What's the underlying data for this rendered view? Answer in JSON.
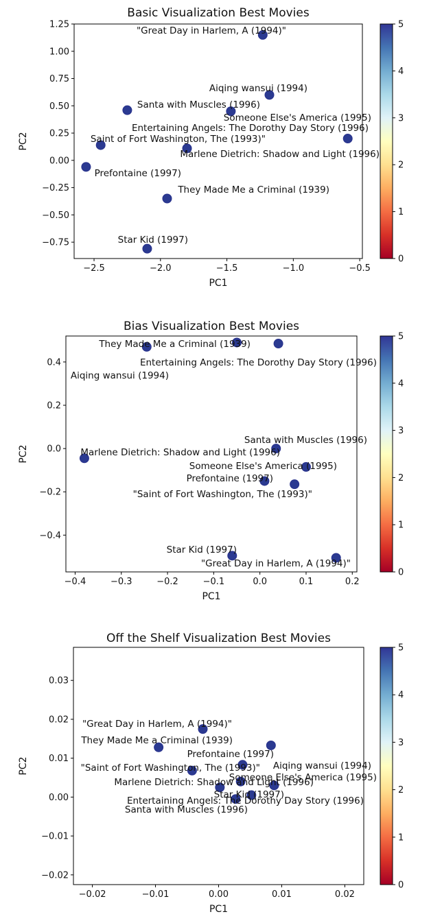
{
  "colorbar": {
    "ticks": [
      "0",
      "1",
      "2",
      "3",
      "4",
      "5"
    ],
    "min": 0,
    "max": 5,
    "colormap": "RdYlBu",
    "stops": [
      "#a50026",
      "#d73027",
      "#f46d43",
      "#fdae61",
      "#fee090",
      "#ffffbf",
      "#e0f3f8",
      "#abd9e9",
      "#74add1",
      "#4575b4",
      "#313695"
    ]
  },
  "point_color": "#2b3a91",
  "chart_data": [
    {
      "type": "scatter",
      "title": "Basic Visualization Best Movies",
      "xlabel": "PC1",
      "ylabel": "PC2",
      "xlim": [
        -2.65,
        -0.48
      ],
      "ylim": [
        -0.9,
        1.25
      ],
      "xticks": [
        -2.5,
        -2.0,
        -1.5,
        -1.0,
        -0.5
      ],
      "xtick_labels": [
        "−2.5",
        "−2.0",
        "−1.5",
        "−1.0",
        "−0.5"
      ],
      "yticks": [
        -0.75,
        -0.5,
        -0.25,
        0.0,
        0.25,
        0.5,
        0.75,
        1.0,
        1.25
      ],
      "ytick_labels": [
        "−0.75",
        "−0.50",
        "−0.25",
        "0.00",
        "0.25",
        "0.50",
        "0.75",
        "1.00",
        "1.25"
      ],
      "grid": false,
      "points": [
        {
          "label": "\"Great Day in Harlem, A (1994)\"",
          "x": -1.23,
          "y": 1.15,
          "value": 5
        },
        {
          "label": "Aiqing wansui (1994)",
          "x": -1.18,
          "y": 0.6,
          "value": 5
        },
        {
          "label": "Santa with Muscles (1996)",
          "x": -2.25,
          "y": 0.46,
          "value": 5
        },
        {
          "label": "Someone Else's America (1995)",
          "x": -1.47,
          "y": 0.45,
          "value": 5
        },
        {
          "label": "Entertaining Angels: The Dorothy Day Story (1996)",
          "x": -0.59,
          "y": 0.2,
          "value": 5
        },
        {
          "label": "Saint of Fort Washington, The (1993)\"",
          "x": -2.45,
          "y": 0.14,
          "value": 5
        },
        {
          "label": "Marlene Dietrich: Shadow and Light (1996)",
          "x": -1.8,
          "y": 0.11,
          "value": 5
        },
        {
          "label": "Prefontaine (1997)",
          "x": -2.56,
          "y": -0.06,
          "value": 5
        },
        {
          "label": "They Made Me a Criminal (1939)",
          "x": -1.95,
          "y": -0.35,
          "value": 5
        },
        {
          "label": "Star Kid (1997)",
          "x": -2.1,
          "y": -0.81,
          "value": 5
        }
      ]
    },
    {
      "type": "scatter",
      "title": "Bias Visualization Best Movies",
      "xlabel": "PC1",
      "ylabel": "PC2",
      "xlim": [
        -0.42,
        0.21
      ],
      "ylim": [
        -0.57,
        0.52
      ],
      "xticks": [
        -0.4,
        -0.3,
        -0.2,
        -0.1,
        0.0,
        0.1,
        0.2
      ],
      "xtick_labels": [
        "−0.4",
        "−0.3",
        "−0.2",
        "−0.1",
        "0.0",
        "0.1",
        "0.2"
      ],
      "yticks": [
        -0.4,
        -0.2,
        0.0,
        0.2,
        0.4
      ],
      "ytick_labels": [
        "−0.4",
        "−0.2",
        "0.0",
        "0.2",
        "0.4"
      ],
      "grid": false,
      "points": [
        {
          "label": "They Made Me a Criminal (1939)",
          "x": -0.245,
          "y": 0.47,
          "value": 5
        },
        {
          "label": "Entertaining Angels: The Dorothy Day Story (1996)",
          "x": -0.05,
          "y": 0.49,
          "value": 5
        },
        {
          "label": "Aiqing wansui (1994)",
          "x": 0.04,
          "y": 0.485,
          "value": 5
        },
        {
          "label": "Santa with Muscles (1996)",
          "x": 0.035,
          "y": 0.0,
          "value": 5
        },
        {
          "label": "Marlene Dietrich: Shadow and Light (1996)",
          "x": -0.38,
          "y": -0.045,
          "value": 5
        },
        {
          "label": "Someone Else's America (1995)",
          "x": 0.1,
          "y": -0.085,
          "value": 5
        },
        {
          "label": "Prefontaine (1997)",
          "x": 0.01,
          "y": -0.15,
          "value": 5
        },
        {
          "label": "\"Saint of Fort Washington, The (1993)\"",
          "x": 0.075,
          "y": -0.165,
          "value": 5
        },
        {
          "label": "Star Kid (1997)",
          "x": -0.06,
          "y": -0.495,
          "value": 5
        },
        {
          "label": "\"Great Day in Harlem, A (1994)\"",
          "x": 0.165,
          "y": -0.505,
          "value": 5
        }
      ]
    },
    {
      "type": "scatter",
      "title": "Off the Shelf Visualization Best Movies",
      "xlabel": "PC1",
      "ylabel": "PC2",
      "xlim": [
        -0.023,
        0.023
      ],
      "ylim": [
        -0.0225,
        0.0385
      ],
      "xticks": [
        -0.02,
        -0.01,
        0.0,
        0.01,
        0.02
      ],
      "xtick_labels": [
        "−0.02",
        "−0.01",
        "0.00",
        "0.01",
        "0.02"
      ],
      "yticks": [
        -0.02,
        -0.01,
        0.0,
        0.01,
        0.02,
        0.03
      ],
      "ytick_labels": [
        "−0.02",
        "−0.01",
        "0.00",
        "0.01",
        "0.02",
        "0.03"
      ],
      "grid": false,
      "points": [
        {
          "label": "\"Great Day in Harlem, A (1994)\"",
          "x": -0.0025,
          "y": 0.0175,
          "value": 5
        },
        {
          "label": "They Made Me a Criminal (1939)",
          "x": -0.0095,
          "y": 0.0128,
          "value": 5
        },
        {
          "label": "Prefontaine (1997)",
          "x": 0.0083,
          "y": 0.0133,
          "value": 5
        },
        {
          "label": "Aiqing wansui (1994)",
          "x": 0.0038,
          "y": 0.0083,
          "value": 5
        },
        {
          "label": "\"Saint of Fort Washington, The (1993)\"",
          "x": -0.0042,
          "y": 0.0068,
          "value": 5
        },
        {
          "label": "Someone Else's America (1995)",
          "x": 0.0088,
          "y": 0.003,
          "value": 5
        },
        {
          "label": "Marlene Dietrich: Shadow and Light (1996)",
          "x": 0.0035,
          "y": 0.004,
          "value": 5
        },
        {
          "label": "Star Kid (1997)",
          "x": 0.0002,
          "y": 0.0025,
          "value": 5
        },
        {
          "label": "Entertaining Angels: The Dorothy Day Story (1996)",
          "x": 0.0052,
          "y": 0.0005,
          "value": 5
        },
        {
          "label": "Santa with Muscles (1996)",
          "x": 0.0027,
          "y": -0.0005,
          "value": 5
        }
      ]
    }
  ]
}
